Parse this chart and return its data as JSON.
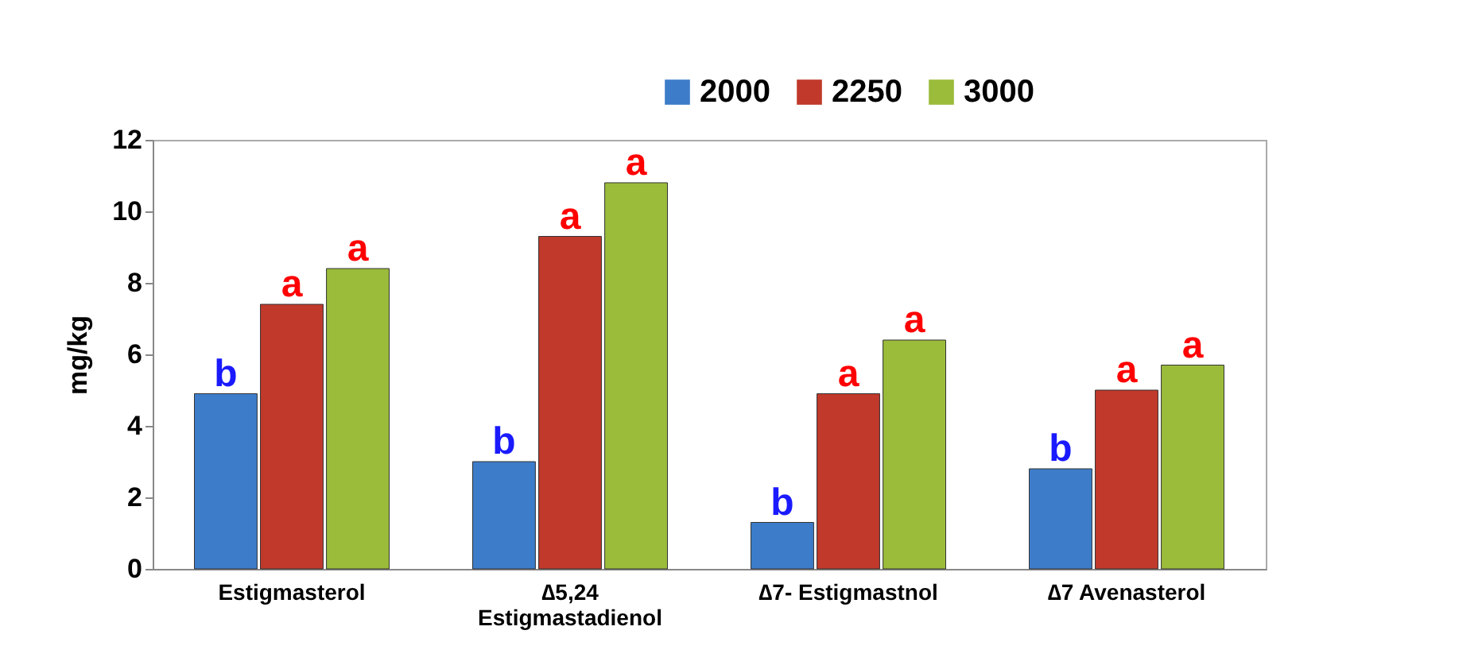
{
  "chart_data": {
    "type": "bar",
    "ylabel": "mg/kg",
    "categories": [
      "Estigmasterol",
      "∆5,24\nEstigmastadienol",
      "∆7- Estigmastnol",
      "∆7 Avenasterol"
    ],
    "series": [
      {
        "name": "2000",
        "color": "#3d7cc9",
        "values": [
          4.9,
          3.0,
          1.3,
          2.8
        ],
        "value_labels": [
          "b",
          "b",
          "b",
          "b"
        ]
      },
      {
        "name": "2250",
        "color": "#c0392b",
        "values": [
          7.4,
          9.3,
          4.9,
          5.0
        ],
        "value_labels": [
          "a",
          "a",
          "a",
          "a"
        ]
      },
      {
        "name": "3000",
        "color": "#9bbb3b",
        "values": [
          8.4,
          10.8,
          6.4,
          5.7
        ],
        "value_labels": [
          "a",
          "a",
          "a",
          "a"
        ]
      }
    ],
    "ylim": [
      0,
      12
    ],
    "yticks": [
      0,
      2,
      4,
      6,
      8,
      10,
      12
    ],
    "grid": false,
    "legend": "top"
  }
}
